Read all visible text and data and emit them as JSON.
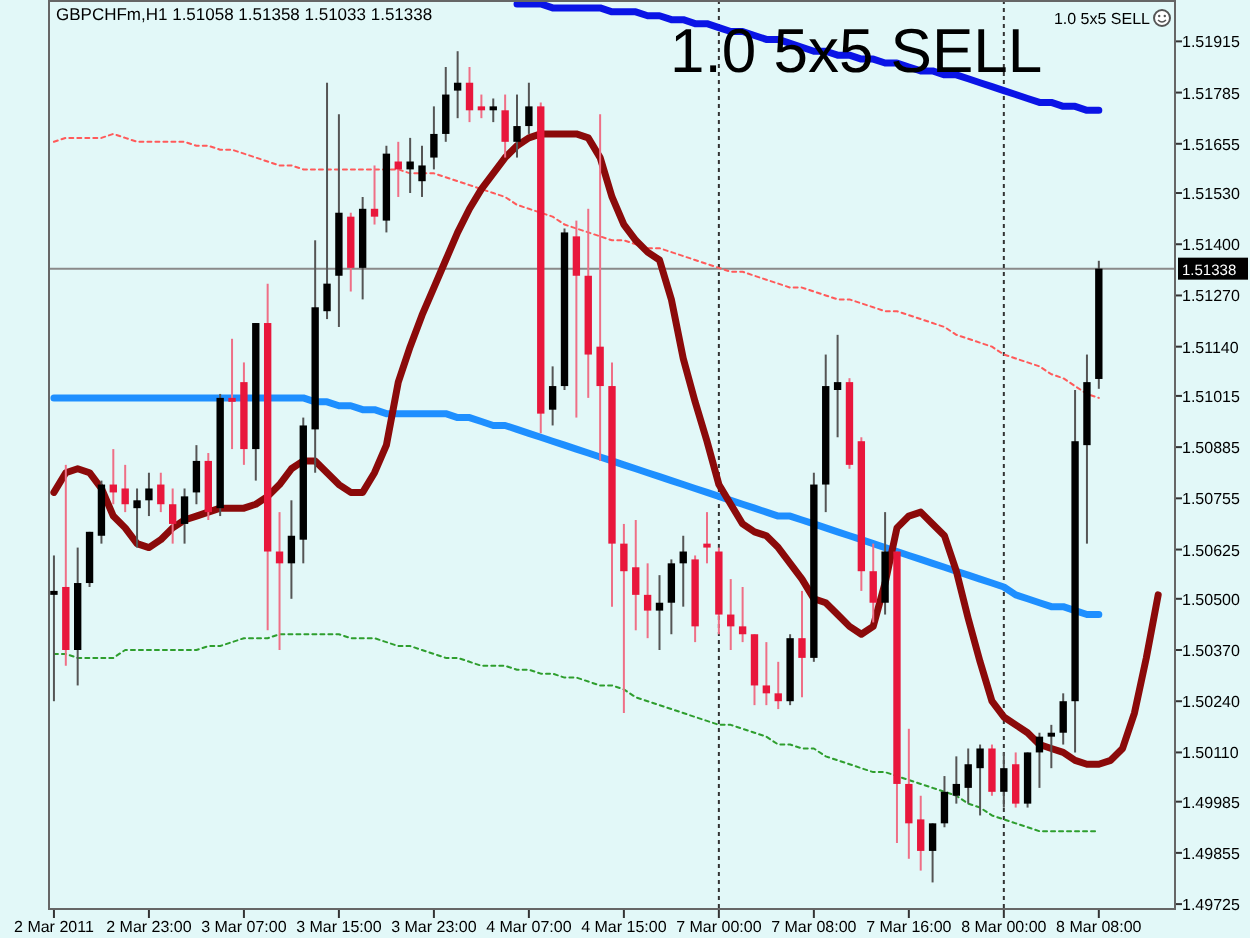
{
  "chart_data": {
    "type": "candlestick",
    "title": "GBPCHFm,H1 1.51058 1.51358 1.51033 1.51338",
    "annotations": [
      "1.0 5x5 SELL",
      "1.0 5x5 SELL"
    ],
    "categories": [
      "2 Mar 2011",
      null,
      null,
      null,
      null,
      null,
      null,
      null,
      "2 Mar 23:00",
      null,
      null,
      null,
      null,
      null,
      null,
      null,
      "3 Mar 07:00",
      null,
      null,
      null,
      null,
      null,
      null,
      null,
      "3 Mar 15:00",
      null,
      null,
      null,
      null,
      null,
      null,
      null,
      "3 Mar 23:00",
      null,
      null,
      null,
      null,
      null,
      null,
      null,
      "4 Mar 07:00",
      null,
      null,
      null,
      null,
      null,
      null,
      null,
      "4 Mar 15:00",
      null,
      null,
      null,
      null,
      null,
      null,
      null,
      "7 Mar 00:00",
      null,
      null,
      null,
      null,
      null,
      null,
      null,
      "7 Mar 08:00",
      null,
      null,
      null,
      null,
      null,
      null,
      null,
      "7 Mar 16:00",
      null,
      null,
      null,
      null,
      null,
      null,
      null,
      "8 Mar 00:00",
      null,
      null,
      null,
      null,
      null,
      null,
      null,
      "8 Mar 08:00",
      null,
      null,
      null,
      null,
      null,
      null
    ],
    "ohlc": [
      [
        1.5051,
        1.5061,
        1.5024,
        1.5052
      ],
      [
        1.5053,
        1.5084,
        1.5033,
        1.5037
      ],
      [
        1.5037,
        1.5063,
        1.5028,
        1.5054
      ],
      [
        1.5054,
        1.5067,
        1.5053,
        1.5067
      ],
      [
        1.5066,
        1.508,
        1.5064,
        1.5079
      ],
      [
        1.5079,
        1.5088,
        1.5074,
        1.5077
      ],
      [
        1.5078,
        1.5084,
        1.5072,
        1.5074
      ],
      [
        1.5073,
        1.5078,
        1.5063,
        1.5075
      ],
      [
        1.5075,
        1.5082,
        1.5071,
        1.5078
      ],
      [
        1.5079,
        1.5082,
        1.5072,
        1.5074
      ],
      [
        1.5074,
        1.5078,
        1.5064,
        1.5069
      ],
      [
        1.5069,
        1.5078,
        1.5064,
        1.5076
      ],
      [
        1.5077,
        1.5089,
        1.5074,
        1.5085
      ],
      [
        1.5085,
        1.5087,
        1.507,
        1.5072
      ],
      [
        1.5073,
        1.5102,
        1.5071,
        1.5101
      ],
      [
        1.5101,
        1.5116,
        1.5088,
        1.51
      ],
      [
        1.5105,
        1.511,
        1.5084,
        1.5088
      ],
      [
        1.5088,
        1.512,
        1.508,
        1.512
      ],
      [
        1.512,
        1.513,
        1.5042,
        1.5062
      ],
      [
        1.5062,
        1.5072,
        1.5037,
        1.5059
      ],
      [
        1.5059,
        1.5075,
        1.505,
        1.5066
      ],
      [
        1.5065,
        1.5096,
        1.5059,
        1.5094
      ],
      [
        1.5093,
        1.5141,
        1.5082,
        1.5124
      ],
      [
        1.5123,
        1.5181,
        1.5121,
        1.513
      ],
      [
        1.5132,
        1.5173,
        1.5119,
        1.5148
      ],
      [
        1.5147,
        1.5148,
        1.5128,
        1.5134
      ],
      [
        1.5134,
        1.5152,
        1.5126,
        1.5149
      ],
      [
        1.5149,
        1.516,
        1.5145,
        1.5147
      ],
      [
        1.5146,
        1.5165,
        1.5143,
        1.5163
      ],
      [
        1.5161,
        1.5166,
        1.5152,
        1.5159
      ],
      [
        1.5159,
        1.5167,
        1.5153,
        1.5161
      ],
      [
        1.5156,
        1.5165,
        1.5152,
        1.516
      ],
      [
        1.5162,
        1.5175,
        1.5159,
        1.5168
      ],
      [
        1.5168,
        1.5185,
        1.5166,
        1.5178
      ],
      [
        1.5179,
        1.5189,
        1.5172,
        1.5181
      ],
      [
        1.5181,
        1.5185,
        1.5171,
        1.5174
      ],
      [
        1.5175,
        1.5178,
        1.5172,
        1.5174
      ],
      [
        1.5174,
        1.5177,
        1.5171,
        1.5175
      ],
      [
        1.5174,
        1.5178,
        1.5162,
        1.5166
      ],
      [
        1.5166,
        1.5178,
        1.5162,
        1.517
      ],
      [
        1.517,
        1.5181,
        1.5168,
        1.5175
      ],
      [
        1.5175,
        1.5176,
        1.5092,
        1.5097
      ],
      [
        1.5098,
        1.5109,
        1.5094,
        1.5104
      ],
      [
        1.5104,
        1.5144,
        1.5103,
        1.5143
      ],
      [
        1.5142,
        1.5146,
        1.5096,
        1.5132
      ],
      [
        1.5132,
        1.5149,
        1.5101,
        1.5112
      ],
      [
        1.5114,
        1.5173,
        1.5085,
        1.5104
      ],
      [
        1.5104,
        1.511,
        1.5048,
        1.5064
      ],
      [
        1.5064,
        1.5069,
        1.5021,
        1.5057
      ],
      [
        1.5058,
        1.507,
        1.5042,
        1.5051
      ],
      [
        1.5051,
        1.5059,
        1.504,
        1.5047
      ],
      [
        1.5047,
        1.5056,
        1.5037,
        1.5049
      ],
      [
        1.5049,
        1.506,
        1.5041,
        1.5059
      ],
      [
        1.5059,
        1.5066,
        1.5048,
        1.5062
      ],
      [
        1.506,
        1.5061,
        1.5039,
        1.5043
      ],
      [
        1.5064,
        1.5072,
        1.5059,
        1.5063
      ],
      [
        1.5062,
        1.5063,
        1.5041,
        1.5046
      ],
      [
        1.5046,
        1.5055,
        1.5037,
        1.5043
      ],
      [
        1.5043,
        1.5053,
        1.5039,
        1.5041
      ],
      [
        1.5041,
        1.5041,
        1.5023,
        1.5028
      ],
      [
        1.5028,
        1.5039,
        1.5023,
        1.5026
      ],
      [
        1.5026,
        1.5034,
        1.5022,
        1.5024
      ],
      [
        1.5024,
        1.5041,
        1.5023,
        1.504
      ],
      [
        1.504,
        1.5052,
        1.5025,
        1.5035
      ],
      [
        1.5035,
        1.5082,
        1.5034,
        1.5079
      ],
      [
        1.5079,
        1.5112,
        1.5072,
        1.5104
      ],
      [
        1.5103,
        1.5117,
        1.5091,
        1.5105
      ],
      [
        1.5105,
        1.5106,
        1.5083,
        1.5084
      ],
      [
        1.509,
        1.5091,
        1.5052,
        1.5057
      ],
      [
        1.5057,
        1.5064,
        1.5044,
        1.5049
      ],
      [
        1.5049,
        1.5072,
        1.5046,
        1.5062
      ],
      [
        1.5062,
        1.5062,
        1.4988,
        1.5003
      ],
      [
        1.5003,
        1.5017,
        1.4984,
        1.4993
      ],
      [
        1.4994,
        1.5,
        1.4981,
        1.4986
      ],
      [
        1.4986,
        1.4993,
        1.4978,
        1.4993
      ],
      [
        1.4993,
        1.5005,
        1.4992,
        1.5001
      ],
      [
        1.5,
        1.501,
        1.4998,
        1.5003
      ],
      [
        1.5002,
        1.5012,
        1.4998,
        1.5008
      ],
      [
        1.5007,
        1.5013,
        1.4995,
        1.5012
      ],
      [
        1.5012,
        1.5013,
        1.5,
        1.5001
      ],
      [
        1.5001,
        1.5011,
        1.4997,
        1.5007
      ],
      [
        1.5008,
        1.5011,
        1.4997,
        1.4998
      ],
      [
        1.4998,
        1.5011,
        1.4997,
        1.5011
      ],
      [
        1.5011,
        1.5016,
        1.5002,
        1.5015
      ],
      [
        1.5015,
        1.5018,
        1.5007,
        1.5016
      ],
      [
        1.5016,
        1.5026,
        1.5013,
        1.5024
      ],
      [
        1.5024,
        1.5103,
        1.5011,
        1.509
      ],
      [
        1.5089,
        1.5112,
        1.5064,
        1.5105
      ],
      [
        1.51058,
        1.51358,
        1.51033,
        1.51338
      ],
      null,
      null,
      null,
      null,
      null,
      null
    ],
    "series": [
      {
        "type": "line",
        "color": "#1e8fff",
        "line_style": "solid",
        "values": [
          1.5101,
          1.5101,
          1.5101,
          1.5101,
          1.5101,
          1.5101,
          1.5101,
          1.5101,
          1.5101,
          1.5101,
          1.5101,
          1.5101,
          1.5101,
          1.5101,
          1.5101,
          1.5101,
          1.5101,
          1.5101,
          1.5101,
          1.5101,
          1.5101,
          1.5101,
          1.51,
          1.51,
          1.5099,
          1.5099,
          1.5098,
          1.5098,
          1.5097,
          1.5097,
          1.5097,
          1.5097,
          1.5097,
          1.5097,
          1.5096,
          1.5096,
          1.5095,
          1.5094,
          1.5094,
          1.5093,
          1.5092,
          1.5091,
          1.509,
          1.5089,
          1.5088,
          1.5087,
          1.5086,
          1.5085,
          1.5084,
          1.5083,
          1.5082,
          1.5081,
          1.508,
          1.5079,
          1.5078,
          1.5077,
          1.5076,
          1.5075,
          1.5074,
          1.5073,
          1.5072,
          1.5071,
          1.5071,
          1.507,
          1.5069,
          1.5068,
          1.5067,
          1.5066,
          1.5065,
          1.5064,
          1.5063,
          1.5062,
          1.5061,
          1.506,
          1.5059,
          1.5058,
          1.5057,
          1.5056,
          1.5055,
          1.5054,
          1.5053,
          1.5051,
          1.505,
          1.5049,
          1.5048,
          1.5048,
          1.5047,
          1.5046,
          1.5046,
          null,
          null,
          null,
          null,
          null,
          null
        ]
      },
      {
        "type": "line",
        "color": "#0a14e6",
        "line_style": "solid",
        "values": [
          null,
          null,
          null,
          null,
          null,
          null,
          null,
          null,
          null,
          null,
          null,
          null,
          null,
          null,
          null,
          null,
          null,
          null,
          null,
          null,
          null,
          null,
          null,
          null,
          null,
          null,
          null,
          null,
          null,
          null,
          null,
          null,
          null,
          null,
          null,
          null,
          null,
          null,
          null,
          1.5201,
          1.5201,
          1.5201,
          1.52,
          1.52,
          1.52,
          1.52,
          1.52,
          1.5199,
          1.5199,
          1.5199,
          1.5198,
          1.5198,
          1.5197,
          1.5197,
          1.5196,
          1.5196,
          1.5195,
          1.5194,
          1.5194,
          1.5193,
          1.5192,
          1.5192,
          1.5191,
          1.519,
          1.5189,
          1.5189,
          1.5188,
          1.5188,
          1.5187,
          1.5187,
          1.5186,
          1.5186,
          1.5185,
          1.5184,
          1.5184,
          1.5183,
          1.5183,
          1.5182,
          1.5181,
          1.518,
          1.5179,
          1.5178,
          1.5177,
          1.5176,
          1.5176,
          1.5175,
          1.5175,
          1.5174,
          1.5174,
          null,
          null,
          null,
          null,
          null,
          null
        ]
      },
      {
        "type": "line",
        "color": "#ff5a5a",
        "line_style": "dotted",
        "values": [
          1.5166,
          1.5167,
          1.5167,
          1.5167,
          1.5167,
          1.5168,
          1.5167,
          1.5166,
          1.5166,
          1.5166,
          1.5166,
          1.5166,
          1.5165,
          1.5165,
          1.5164,
          1.5164,
          1.5163,
          1.5162,
          1.5161,
          1.516,
          1.516,
          1.5159,
          1.5159,
          1.5159,
          1.5159,
          1.5159,
          1.5159,
          1.5159,
          1.5159,
          1.5159,
          1.5158,
          1.5158,
          1.5158,
          1.5157,
          1.5156,
          1.5155,
          1.5154,
          1.5153,
          1.5152,
          1.515,
          1.5149,
          1.5148,
          1.5147,
          1.5145,
          1.5144,
          1.5143,
          1.5142,
          1.5141,
          1.5141,
          1.514,
          1.5139,
          1.5139,
          1.5138,
          1.5137,
          1.5136,
          1.5135,
          1.5134,
          1.5133,
          1.5133,
          1.5132,
          1.5131,
          1.513,
          1.5129,
          1.5129,
          1.5128,
          1.5127,
          1.5126,
          1.5126,
          1.5125,
          1.5124,
          1.5123,
          1.5123,
          1.5122,
          1.5121,
          1.512,
          1.5119,
          1.5117,
          1.5116,
          1.5115,
          1.5114,
          1.5112,
          1.5111,
          1.511,
          1.5109,
          1.5107,
          1.5106,
          1.5104,
          1.5102,
          1.5101,
          null,
          null,
          null,
          null,
          null,
          null
        ]
      },
      {
        "type": "line",
        "color": "#2e9e2e",
        "line_style": "dotted",
        "values": [
          1.5036,
          1.5036,
          1.5035,
          1.5035,
          1.5035,
          1.5035,
          1.5037,
          1.5037,
          1.5037,
          1.5037,
          1.5037,
          1.5037,
          1.5037,
          1.5038,
          1.5038,
          1.5039,
          1.504,
          1.504,
          1.504,
          1.5041,
          1.5041,
          1.5041,
          1.5041,
          1.5041,
          1.5041,
          1.504,
          1.504,
          1.504,
          1.5039,
          1.5038,
          1.5038,
          1.5037,
          1.5036,
          1.5035,
          1.5035,
          1.5034,
          1.5033,
          1.5033,
          1.5033,
          1.5032,
          1.5032,
          1.5031,
          1.5031,
          1.503,
          1.503,
          1.5029,
          1.5028,
          1.5028,
          1.5027,
          1.5025,
          1.5024,
          1.5023,
          1.5022,
          1.5021,
          1.502,
          1.5019,
          1.5018,
          1.5018,
          1.5017,
          1.5016,
          1.5015,
          1.5013,
          1.5013,
          1.5012,
          1.5012,
          1.501,
          1.5009,
          1.5008,
          1.5007,
          1.5006,
          1.5006,
          1.5005,
          1.5004,
          1.5003,
          1.5002,
          1.5001,
          1.5,
          1.4998,
          1.4997,
          1.4995,
          1.4994,
          1.4993,
          1.4992,
          1.4991,
          1.4991,
          1.4991,
          1.4991,
          1.4991,
          1.4991,
          null,
          null,
          null,
          null,
          null,
          null
        ]
      },
      {
        "type": "line",
        "color": "#8b0a0a",
        "line_style": "solid",
        "values": [
          1.5077,
          1.5082,
          1.5083,
          1.5082,
          1.5078,
          1.5071,
          1.5068,
          1.5064,
          1.5063,
          1.5065,
          1.5068,
          1.507,
          1.5071,
          1.5072,
          1.5073,
          1.5073,
          1.5073,
          1.5074,
          1.5076,
          1.5079,
          1.5083,
          1.5085,
          1.5085,
          1.5082,
          1.5079,
          1.5077,
          1.5077,
          1.5082,
          1.5089,
          1.5105,
          1.5114,
          1.5122,
          1.5129,
          1.5136,
          1.5143,
          1.5149,
          1.5154,
          1.5158,
          1.5162,
          1.5165,
          1.5167,
          1.5168,
          1.5168,
          1.5168,
          1.5168,
          1.5167,
          1.5162,
          1.5152,
          1.5145,
          1.5141,
          1.5138,
          1.5136,
          1.5126,
          1.5111,
          1.51,
          1.509,
          1.5079,
          1.5074,
          1.5069,
          1.5067,
          1.5066,
          1.5063,
          1.5059,
          1.5055,
          1.505,
          1.5049,
          1.5046,
          1.5043,
          1.5041,
          1.5043,
          1.5054,
          1.5068,
          1.5071,
          1.5072,
          1.5069,
          1.5066,
          1.5057,
          1.5045,
          1.5034,
          1.5024,
          1.502,
          1.5018,
          1.5016,
          1.5013,
          1.5012,
          1.5011,
          1.5009,
          1.5008,
          1.5008,
          1.5009,
          1.5012,
          1.5021,
          1.5035,
          1.5051,
          null
        ]
      }
    ],
    "ylim": [
      1.4971,
      1.5202
    ],
    "yticks": [
      1.51915,
      1.51785,
      1.51655,
      {
        "value": 1.5153,
        "label": "1.51530"
      },
      {
        "value": 1.514,
        "label": "1.51400"
      },
      {
        "value": 1.5127,
        "label": "1.51270"
      },
      {
        "value": 1.5114,
        "label": "1.51140"
      },
      1.51015,
      1.50885,
      1.50755,
      1.50625,
      {
        "value": 1.505,
        "label": "1.50500"
      },
      {
        "value": 1.5037,
        "label": "1.50370"
      },
      {
        "value": 1.5024,
        "label": "1.50240"
      },
      {
        "value": 1.5011,
        "label": "1.50110"
      },
      1.49985,
      1.49855,
      1.49725
    ],
    "ref_lines": [
      {
        "axis": "y",
        "value": 1.51338,
        "label": "1.51338",
        "color": "#8a8a8a",
        "line_style": "solid"
      },
      {
        "axis": "x",
        "value": "7 Mar 00:00",
        "color": "#333333",
        "line_style": "dotted"
      },
      {
        "axis": "x",
        "value": "8 Mar 00:00",
        "color": "#333333",
        "line_style": "dotted"
      }
    ]
  }
}
